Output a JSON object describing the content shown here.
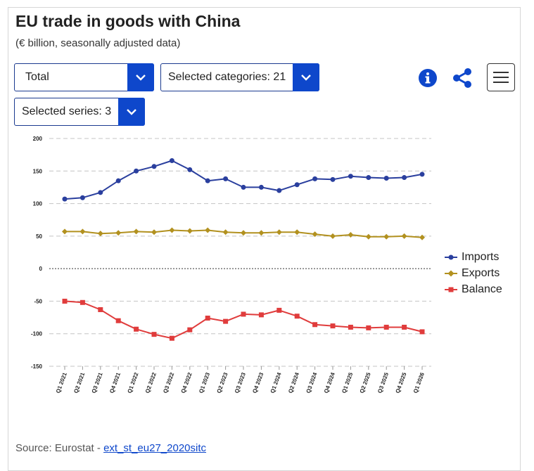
{
  "header": {
    "title": "EU trade in goods with China",
    "subtitle": "(€ billion, seasonally adjusted data)"
  },
  "controls": {
    "total_dropdown": "Total",
    "categories_dropdown": "Selected categories: 21",
    "series_dropdown": "Selected series: 3",
    "icons": [
      "info-icon",
      "share-icon",
      "hamburger-menu-icon",
      "chevron-down-icon"
    ],
    "accent_color": "#0e47cb"
  },
  "source": {
    "prefix": "Source: Eurostat - ",
    "link_text": "ext_st_eu27_2020sitc"
  },
  "chart_data": {
    "type": "line",
    "categories": [
      "Q1 2021",
      "Q2 2021",
      "Q3 2021",
      "Q4 2021",
      "Q1 2022",
      "Q2 2022",
      "Q3 2022",
      "Q4 2022",
      "Q1 2023",
      "Q2 2023",
      "Q3 2023",
      "Q4 2023",
      "Q1 2024",
      "Q2 2024",
      "Q3 2024",
      "Q4 2024",
      "Q1 2025",
      "Q2 2025",
      "Q3 2025",
      "Q4 2025",
      "Q1 2026"
    ],
    "series": [
      {
        "name": "Imports",
        "color": "#2a3f9e",
        "marker": "circle",
        "values": [
          107,
          109,
          117,
          135,
          150,
          157,
          166,
          152,
          135,
          138,
          125,
          125,
          120,
          129,
          138,
          137,
          142,
          140,
          139,
          140,
          145
        ]
      },
      {
        "name": "Exports",
        "color": "#b2911f",
        "marker": "diamond",
        "values": [
          57,
          57,
          54,
          55,
          57,
          56,
          59,
          58,
          59,
          56,
          55,
          55,
          56,
          56,
          53,
          50,
          52,
          49,
          49,
          50,
          48
        ]
      },
      {
        "name": "Balance",
        "color": "#e03c3c",
        "marker": "square",
        "values": [
          -50,
          -52,
          -63,
          -80,
          -93,
          -101,
          -107,
          -94,
          -76,
          -81,
          -70,
          -71,
          -64,
          -73,
          -86,
          -88,
          -90,
          -91,
          -90,
          -90,
          -97
        ]
      }
    ],
    "yticks": [
      200,
      150,
      100,
      50,
      0,
      -50,
      -100,
      -150
    ],
    "ylim": [
      -150,
      200
    ],
    "grid": true,
    "legend_position": "right"
  }
}
